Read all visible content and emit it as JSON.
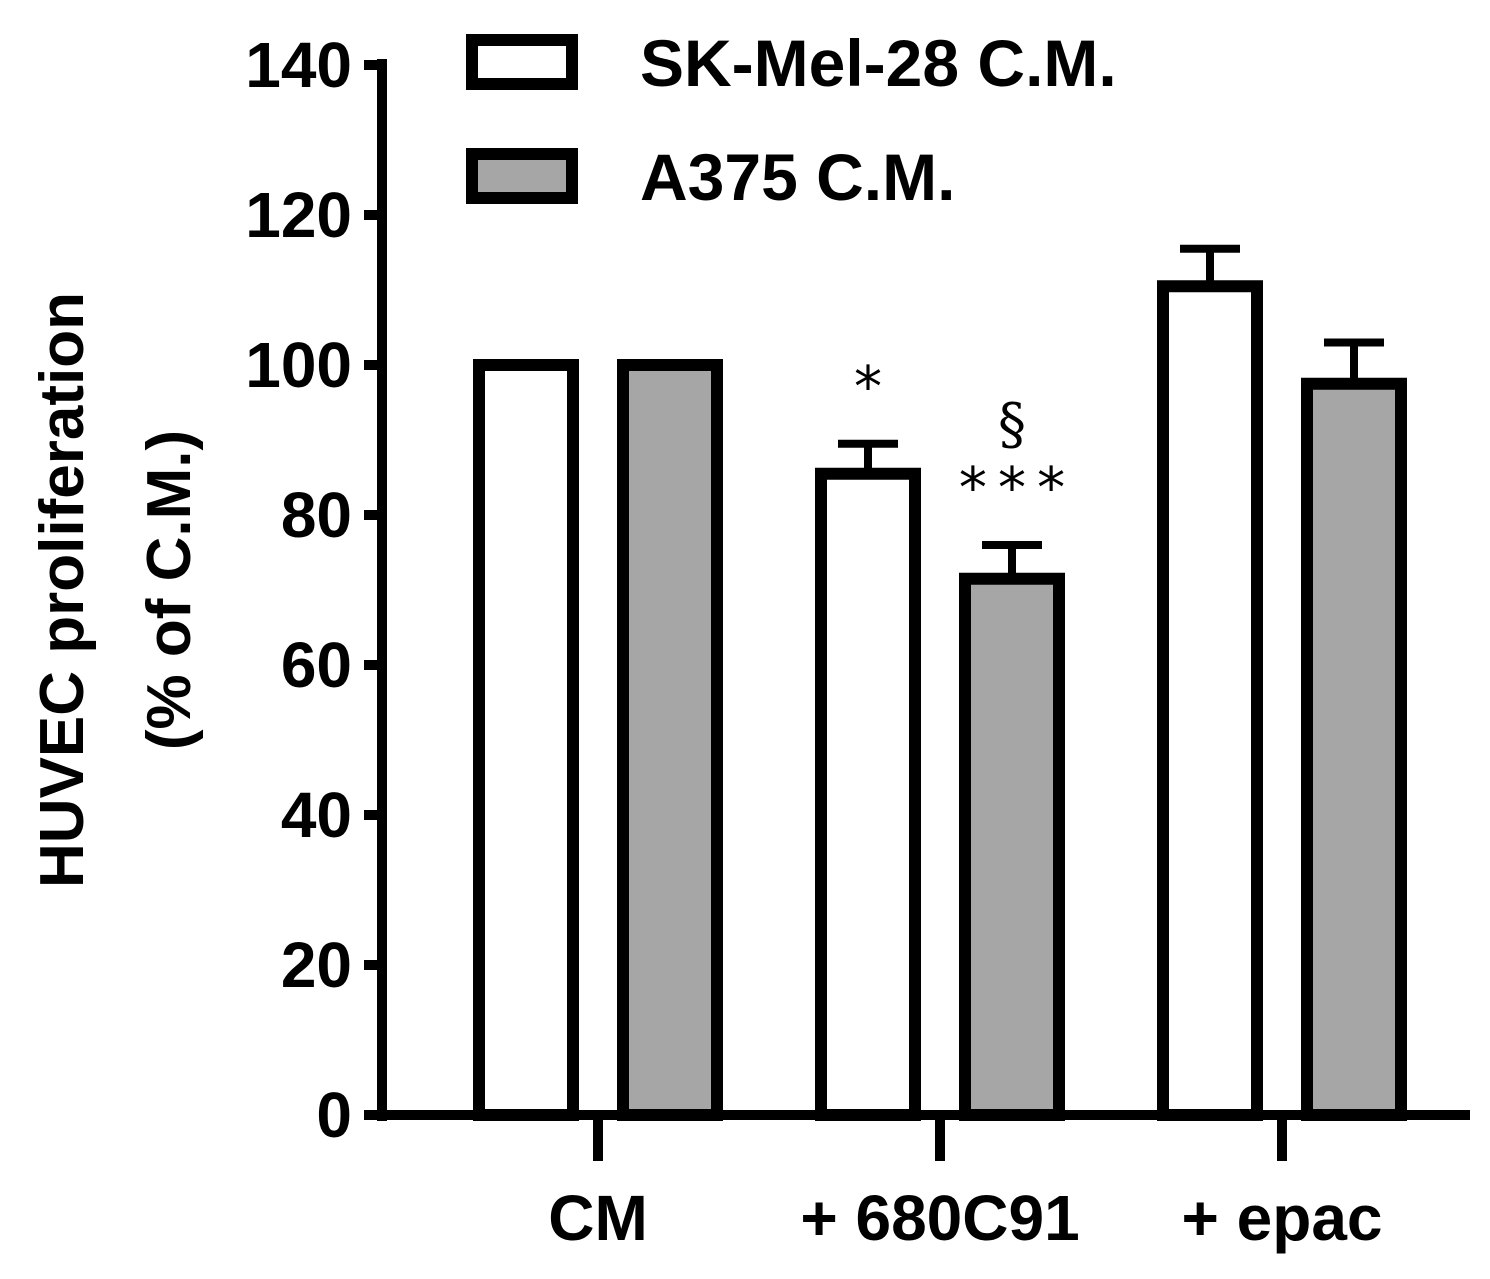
{
  "chart_data": {
    "type": "bar",
    "ylabel_line1": "HUVEC proliferation",
    "ylabel_line2": "(% of C.M.)",
    "ylim": [
      0,
      140
    ],
    "yticks": [
      0,
      20,
      40,
      60,
      80,
      100,
      120,
      140
    ],
    "categories": [
      "CM",
      "+ 680C91",
      "+ epac"
    ],
    "series": [
      {
        "name": "SK-Mel-28 C.M.",
        "color": "#ffffff",
        "values": [
          100,
          85.5,
          110.5
        ],
        "errors": [
          0,
          4,
          5
        ],
        "annotations": [
          "",
          "*",
          ""
        ]
      },
      {
        "name": "A375 C.M.",
        "color": "#a6a6a6",
        "values": [
          100,
          71.5,
          97.5
        ],
        "errors": [
          0,
          4.5,
          5.5
        ],
        "annotations": [
          "",
          "§\n***",
          ""
        ]
      }
    ],
    "legend_position": "top"
  }
}
